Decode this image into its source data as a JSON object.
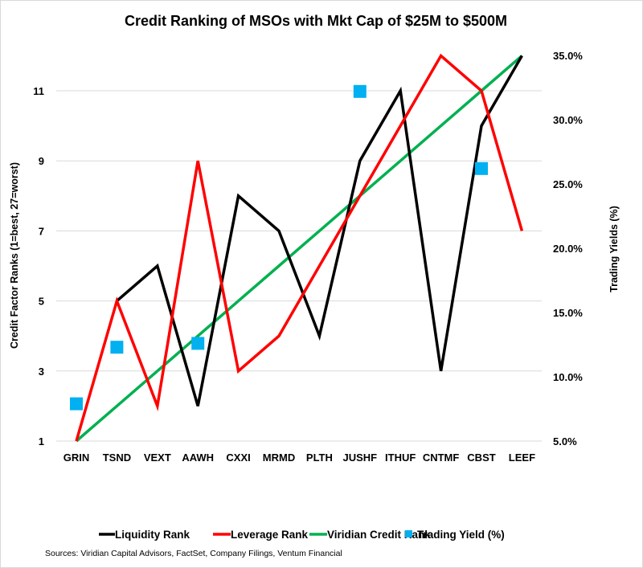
{
  "chart_data": {
    "type": "line",
    "title": "Credit Ranking of MSOs with Mkt Cap of $25M to $500M",
    "xlabel": "",
    "ylabel": "Credit Factor Ranks (1=best, 27=worst)",
    "y2label": "Trading Yields (%)",
    "categories": [
      "GRIN",
      "TSND",
      "VEXT",
      "AAWH",
      "CXXI",
      "MRMD",
      "PLTH",
      "JUSHF",
      "ITHUF",
      "CNTMF",
      "CBST",
      "LEEF"
    ],
    "ylim": [
      1,
      12
    ],
    "yticks": [
      1,
      3,
      5,
      7,
      9,
      11
    ],
    "y2lim": [
      5.0,
      35.0
    ],
    "y2ticks": [
      "5.0%",
      "10.0%",
      "15.0%",
      "20.0%",
      "25.0%",
      "30.0%",
      "35.0%"
    ],
    "y2tick_values": [
      5,
      10,
      15,
      20,
      25,
      30,
      35
    ],
    "grid": true,
    "legend_position": "bottom",
    "series": [
      {
        "name": "Liquidity Rank",
        "type": "line",
        "axis": "left",
        "color": "#000000",
        "values": [
          null,
          5,
          6,
          2,
          8,
          7,
          4,
          9,
          11,
          3,
          10,
          12
        ]
      },
      {
        "name": "Leverage Rank",
        "type": "line",
        "axis": "left",
        "color": "#ff0000",
        "values": [
          1,
          5,
          2,
          9,
          3,
          4,
          6,
          8,
          10,
          12,
          11,
          7
        ]
      },
      {
        "name": "Viridian Credit Rank",
        "type": "line",
        "axis": "left",
        "color": "#00b050",
        "values": [
          1,
          2,
          3,
          4,
          5,
          6,
          7,
          8,
          9,
          10,
          11,
          12
        ]
      },
      {
        "name": "Trading Yield (%)",
        "type": "scatter",
        "axis": "right",
        "color": "#00b0f0",
        "values": [
          7.9,
          12.3,
          null,
          12.6,
          null,
          null,
          null,
          32.2,
          null,
          null,
          26.2,
          null
        ]
      }
    ],
    "source": "Sources: Viridian Capital Advisors, FactSet, Company Filings, Ventum Financial"
  }
}
